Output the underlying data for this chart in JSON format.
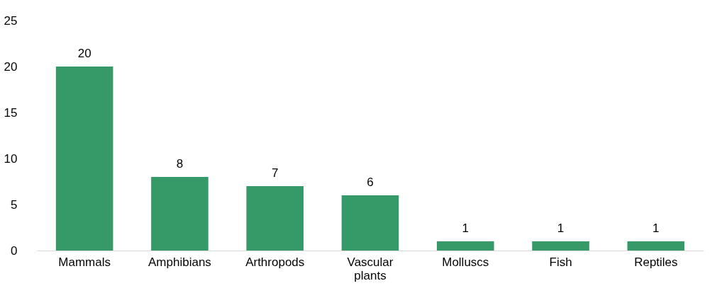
{
  "chart_data": {
    "type": "bar",
    "categories": [
      "Mammals",
      "Amphibians",
      "Arthropods",
      "Vascular plants",
      "Molluscs",
      "Fish",
      "Reptiles"
    ],
    "values": [
      20,
      8,
      7,
      6,
      1,
      1,
      1
    ],
    "color": "#359a68",
    "ylim": [
      0,
      25
    ],
    "yticks": [
      0,
      5,
      10,
      15,
      20,
      25
    ],
    "grid": false,
    "data_labels": true
  }
}
